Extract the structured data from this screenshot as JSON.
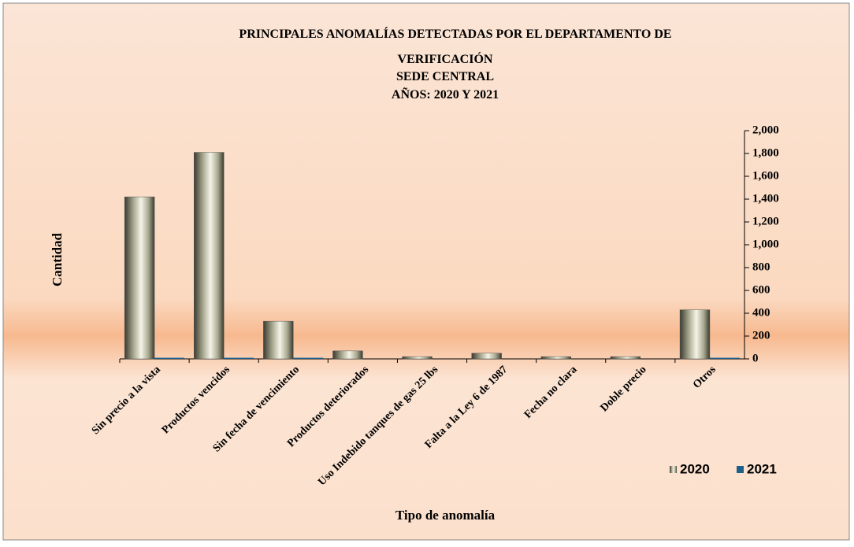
{
  "chart_data": {
    "type": "bar",
    "title": [
      "PRINCIPALES  ANOMALÍAS  DETECTADAS  POR EL DEPARTAMENTO  DE",
      "VERIFICACIÓN",
      "SEDE CENTRAL",
      "AÑOS: 2020 Y 2021"
    ],
    "x_label": "Tipo de anomalía",
    "y_label": "Cantidad",
    "categories": [
      "Sin precio a la vista",
      "Productos vencidos",
      "Sin fecha de vencimiento",
      "Productos deteriorados",
      "Uso Indebido tanques de gas 25 lbs",
      "Falta a la Ley 6 de 1987",
      "Fecha no clara",
      "Doble precio",
      "Otros"
    ],
    "series": [
      {
        "name": "2020",
        "color": "#a8a890",
        "values": [
          1420,
          1810,
          330,
          70,
          20,
          50,
          20,
          20,
          430
        ]
      },
      {
        "name": "2021",
        "color": "#1f5f8b",
        "values": [
          10,
          10,
          10,
          0,
          0,
          0,
          0,
          0,
          10
        ]
      }
    ],
    "ylim": [
      0,
      2000
    ],
    "yticks": [
      0,
      200,
      400,
      600,
      800,
      {
        "value": 1000,
        "label": "1,000"
      },
      {
        "value": 1200,
        "label": "1,200"
      },
      {
        "value": 1400,
        "label": "1,400"
      },
      {
        "value": 1600,
        "label": "1,600"
      },
      {
        "value": 1800,
        "label": "1,800"
      },
      {
        "value": 2000,
        "label": "2,000"
      }
    ],
    "y_axis_side": "right",
    "legend": "bottom-right"
  }
}
